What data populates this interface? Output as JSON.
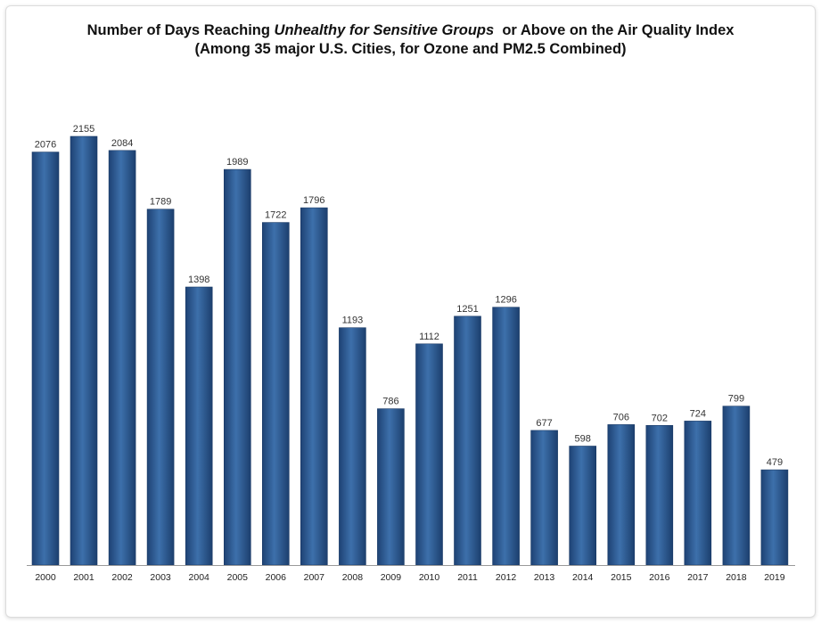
{
  "chart_data": {
    "type": "bar",
    "title_line1_prefix": "Number of Days Reaching ",
    "title_line1_italic": "Unhealthy for Sensitive Groups",
    "title_line1_suffix": "  or Above on the Air Quality Index",
    "title_line2": "(Among 35 major U.S. Cities, for Ozone and PM2.5 Combined)",
    "xlabel": "",
    "ylabel": "",
    "ylim": [
      0,
      2155
    ],
    "grid": false,
    "bar_color": "#2f5f97",
    "categories": [
      "2000",
      "2001",
      "2002",
      "2003",
      "2004",
      "2005",
      "2006",
      "2007",
      "2008",
      "2009",
      "2010",
      "2011",
      "2012",
      "2013",
      "2014",
      "2015",
      "2016",
      "2017",
      "2018",
      "2019"
    ],
    "values": [
      2076,
      2155,
      2084,
      1789,
      1398,
      1989,
      1722,
      1796,
      1193,
      786,
      1112,
      1251,
      1296,
      677,
      598,
      706,
      702,
      724,
      799,
      479
    ]
  }
}
